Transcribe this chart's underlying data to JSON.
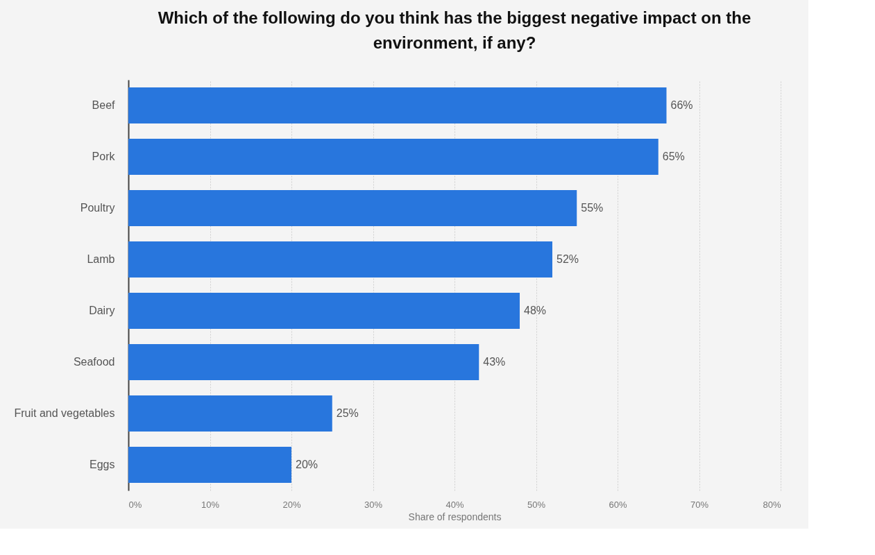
{
  "chart_data": {
    "type": "bar",
    "orientation": "horizontal",
    "title": "Which of the following do you think has the biggest negative impact on the environment, if any?",
    "xlabel": "Share of respondents",
    "categories": [
      "Beef",
      "Pork",
      "Poultry",
      "Lamb",
      "Dairy",
      "Seafood",
      "Fruit and vegetables",
      "Eggs"
    ],
    "values": [
      66,
      65,
      55,
      52,
      48,
      43,
      25,
      20
    ],
    "value_labels": [
      "66%",
      "65%",
      "55%",
      "52%",
      "48%",
      "43%",
      "25%",
      "20%"
    ],
    "color": "#2876dd",
    "xlim": [
      0,
      80
    ],
    "xticks": [
      {
        "value": 0,
        "label": "0%"
      },
      {
        "value": 10,
        "label": "10%"
      },
      {
        "value": 20,
        "label": "20%"
      },
      {
        "value": 30,
        "label": "30%"
      },
      {
        "value": 40,
        "label": "40%"
      },
      {
        "value": 50,
        "label": "50%"
      },
      {
        "value": 60,
        "label": "60%"
      },
      {
        "value": 70,
        "label": "70%"
      },
      {
        "value": 80,
        "label": "80%"
      }
    ],
    "grid": "x"
  }
}
